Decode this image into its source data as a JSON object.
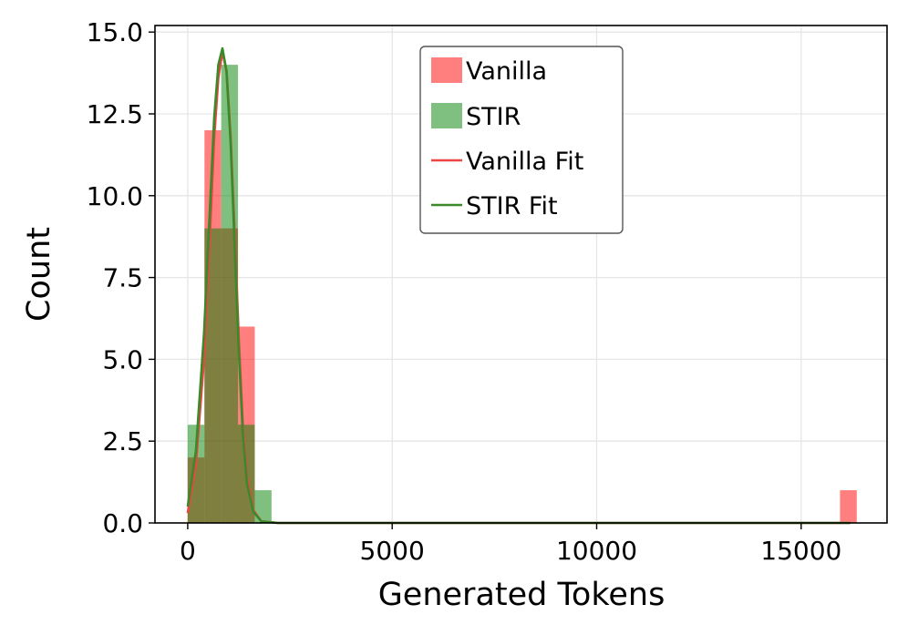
{
  "chart_data": {
    "type": "bar",
    "xlabel": "Generated Tokens",
    "ylabel": "Count",
    "xlim": [
      -800,
      17100
    ],
    "ylim": [
      0,
      15.2
    ],
    "grid": true,
    "legend_position": "top-center",
    "x_ticks": [
      {
        "value": 0,
        "label": "0"
      },
      {
        "value": 5000,
        "label": "5000"
      },
      {
        "value": 10000,
        "label": "10000"
      },
      {
        "value": 15000,
        "label": "15000"
      }
    ],
    "y_ticks": [
      {
        "value": 0,
        "label": "0.0"
      },
      {
        "value": 2.5,
        "label": "2.5"
      },
      {
        "value": 5,
        "label": "5.0"
      },
      {
        "value": 7.5,
        "label": "7.5"
      },
      {
        "value": 10,
        "label": "10.0"
      },
      {
        "value": 12.5,
        "label": "12.5"
      },
      {
        "value": 15,
        "label": "15.0"
      }
    ],
    "series": [
      {
        "name": "Vanilla",
        "kind": "histogram",
        "color": "#ff0000",
        "opacity": 0.5,
        "bins": [
          {
            "x0": 0,
            "x1": 410,
            "count": 2
          },
          {
            "x0": 410,
            "x1": 820,
            "count": 12
          },
          {
            "x0": 820,
            "x1": 1230,
            "count": 9
          },
          {
            "x0": 1230,
            "x1": 1640,
            "count": 6
          },
          {
            "x0": 15950,
            "x1": 16360,
            "count": 1
          }
        ]
      },
      {
        "name": "STIR",
        "kind": "histogram",
        "color": "#008000",
        "opacity": 0.5,
        "bins": [
          {
            "x0": 0,
            "x1": 410,
            "count": 3
          },
          {
            "x0": 410,
            "x1": 820,
            "count": 9
          },
          {
            "x0": 820,
            "x1": 1230,
            "count": 14
          },
          {
            "x0": 1230,
            "x1": 1640,
            "count": 3
          },
          {
            "x0": 1640,
            "x1": 2050,
            "count": 1
          }
        ]
      },
      {
        "name": "Vanilla Fit",
        "kind": "line",
        "color": "#ee4444",
        "points": [
          [
            0,
            0.3
          ],
          [
            200,
            1.8
          ],
          [
            400,
            5.0
          ],
          [
            550,
            9.0
          ],
          [
            650,
            11.8
          ],
          [
            750,
            13.6
          ],
          [
            850,
            14.4
          ],
          [
            950,
            13.8
          ],
          [
            1050,
            11.8
          ],
          [
            1150,
            8.8
          ],
          [
            1250,
            5.6
          ],
          [
            1350,
            3.0
          ],
          [
            1450,
            1.4
          ],
          [
            1600,
            0.4
          ],
          [
            1800,
            0.05
          ],
          [
            2200,
            0
          ],
          [
            16200,
            0
          ]
        ]
      },
      {
        "name": "STIR Fit",
        "kind": "line",
        "color": "#3a8a2a",
        "points": [
          [
            0,
            0.5
          ],
          [
            200,
            2.2
          ],
          [
            400,
            5.8
          ],
          [
            550,
            9.8
          ],
          [
            650,
            12.4
          ],
          [
            750,
            14.0
          ],
          [
            850,
            14.5
          ],
          [
            950,
            13.8
          ],
          [
            1050,
            11.6
          ],
          [
            1150,
            8.4
          ],
          [
            1250,
            5.2
          ],
          [
            1350,
            2.7
          ],
          [
            1450,
            1.2
          ],
          [
            1600,
            0.35
          ],
          [
            1800,
            0.05
          ],
          [
            2200,
            0
          ],
          [
            16200,
            0
          ]
        ]
      }
    ],
    "legend": [
      "Vanilla",
      "STIR",
      "Vanilla Fit",
      "STIR Fit"
    ]
  }
}
